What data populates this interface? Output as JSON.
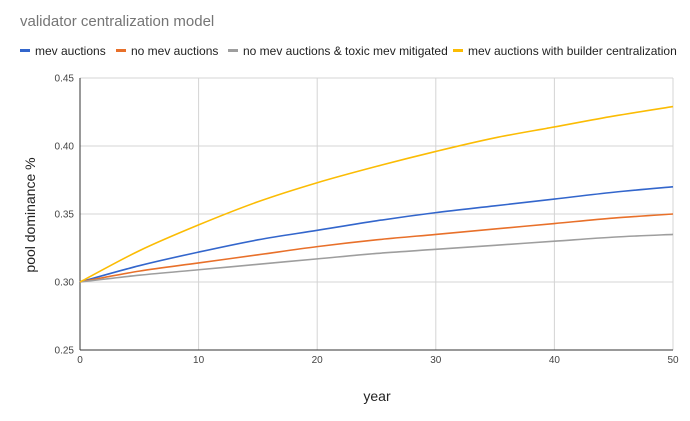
{
  "chart_data": {
    "type": "line",
    "title": "validator centralization model",
    "xlabel": "year",
    "ylabel": "pool dominance %",
    "xlim": [
      0,
      50
    ],
    "ylim": [
      0.25,
      0.45
    ],
    "x_ticks": [
      "0",
      "10",
      "20",
      "30",
      "40",
      "50"
    ],
    "y_ticks": [
      "0.25",
      "0.30",
      "0.35",
      "0.40",
      "0.45"
    ],
    "grid": true,
    "legend_position": "top",
    "x": [
      0,
      5,
      10,
      15,
      20,
      25,
      30,
      35,
      40,
      45,
      50
    ],
    "series": [
      {
        "name": "mev auctions",
        "color": "#3366cc",
        "values": [
          0.3,
          0.312,
          0.322,
          0.331,
          0.338,
          0.345,
          0.351,
          0.356,
          0.361,
          0.366,
          0.37
        ]
      },
      {
        "name": "no mev auctions",
        "color": "#e8702a",
        "values": [
          0.3,
          0.308,
          0.314,
          0.32,
          0.326,
          0.331,
          0.335,
          0.339,
          0.343,
          0.347,
          0.35
        ]
      },
      {
        "name": "no mev auctions & toxic mev mitigated",
        "color": "#9e9e9e",
        "values": [
          0.3,
          0.305,
          0.309,
          0.313,
          0.317,
          0.321,
          0.324,
          0.327,
          0.33,
          0.333,
          0.335
        ]
      },
      {
        "name": "mev auctions with builder centralization",
        "color": "#fbbc04",
        "values": [
          0.3,
          0.323,
          0.342,
          0.359,
          0.373,
          0.385,
          0.396,
          0.406,
          0.414,
          0.422,
          0.429
        ]
      }
    ]
  }
}
